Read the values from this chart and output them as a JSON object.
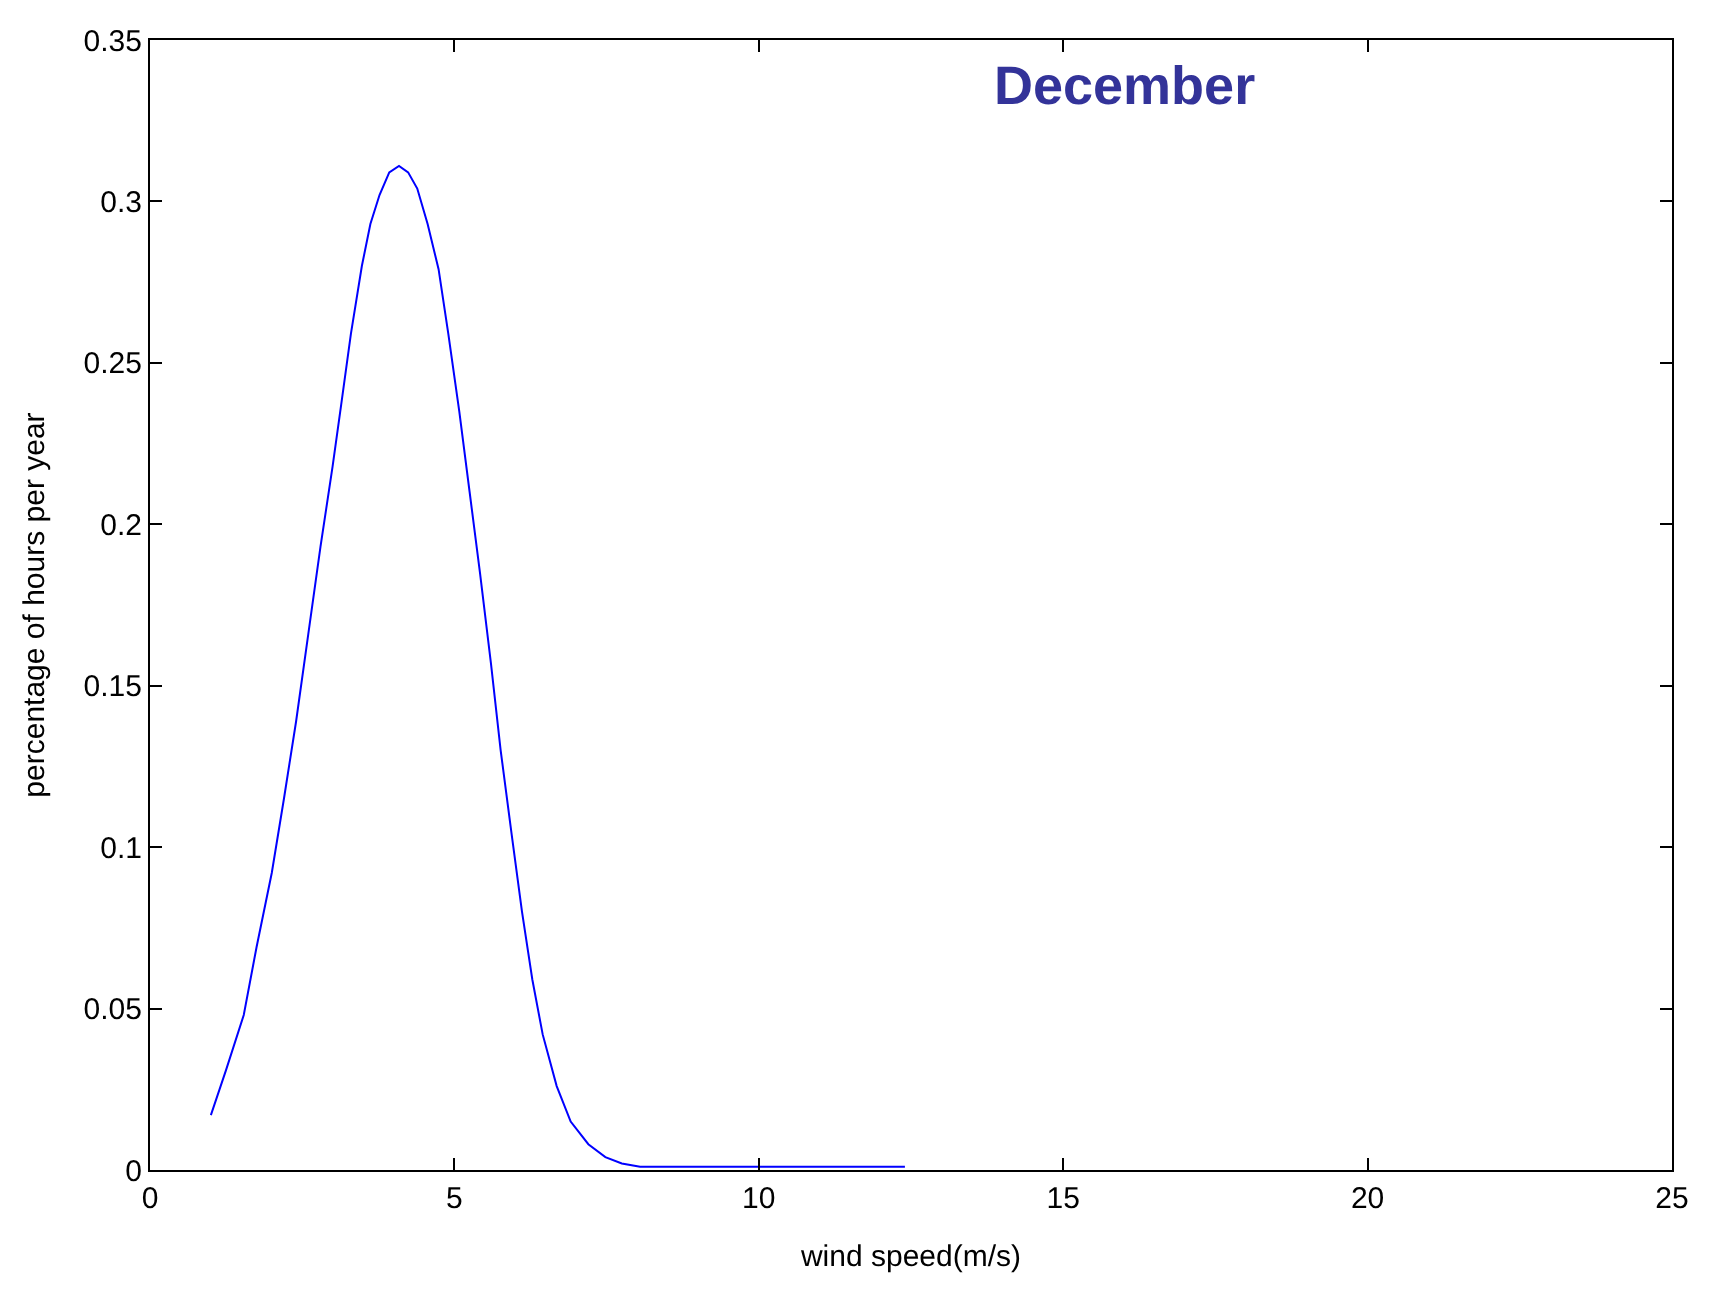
{
  "chart_data": {
    "type": "line",
    "xlabel": "wind speed(m/s)",
    "ylabel": "percentage of hours per year",
    "annotations": [
      "December"
    ],
    "x": [
      1.0,
      1.25,
      1.54,
      1.75,
      2.0,
      2.2,
      2.4,
      2.6,
      2.8,
      3.0,
      3.14,
      3.3,
      3.48,
      3.62,
      3.77,
      3.93,
      4.09,
      4.24,
      4.39,
      4.56,
      4.74,
      4.9,
      5.08,
      5.25,
      5.42,
      5.6,
      5.76,
      5.94,
      6.11,
      6.28,
      6.45,
      6.68,
      6.91,
      7.2,
      7.48,
      7.75,
      8.05,
      10.0,
      12.4
    ],
    "series": [
      {
        "color": "#0000ff",
        "values": [
          0.017,
          0.031,
          0.048,
          0.069,
          0.092,
          0.115,
          0.139,
          0.166,
          0.193,
          0.218,
          0.237,
          0.259,
          0.28,
          0.293,
          0.302,
          0.309,
          0.311,
          0.309,
          0.304,
          0.293,
          0.279,
          0.259,
          0.235,
          0.21,
          0.185,
          0.157,
          0.13,
          0.104,
          0.08,
          0.059,
          0.042,
          0.026,
          0.015,
          0.008,
          0.004,
          0.002,
          0.001,
          0.001,
          0.001
        ]
      }
    ],
    "xlim": [
      0,
      25
    ],
    "ylim": [
      0,
      0.35
    ],
    "xticks": [
      0,
      5,
      10,
      15,
      20,
      25
    ],
    "yticks": [
      0,
      0.05,
      0.1,
      0.15,
      0.2,
      0.25,
      0.3,
      0.35
    ],
    "marker": "none",
    "line_style": "solid"
  }
}
